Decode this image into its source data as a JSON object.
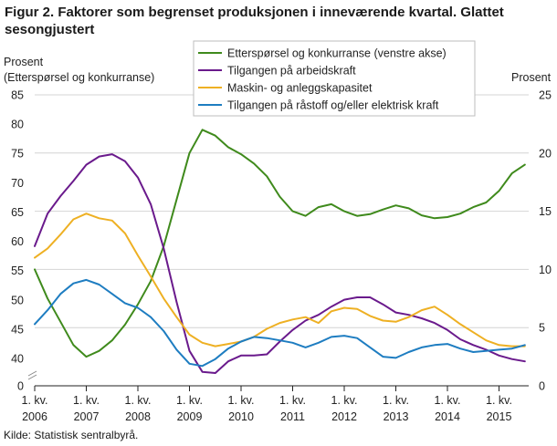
{
  "title": "Figur 2. Faktorer som begrenset produksjonen i inneværende kvartal. Glattet sesongjustert",
  "source": "Kilde: Statistisk sentralbyrå.",
  "chart_data": {
    "type": "line",
    "ylabel_left": [
      "Prosent",
      "(Etterspørsel  og konkurranse)"
    ],
    "ylabel_right": "Prosent",
    "x_ticks": [
      {
        "line1": "1. kv.",
        "line2": "2006"
      },
      {
        "line1": "1. kv.",
        "line2": "2007"
      },
      {
        "line1": "1. kv.",
        "line2": "2008"
      },
      {
        "line1": "1. kv.",
        "line2": "2009"
      },
      {
        "line1": "1. kv.",
        "line2": "2010"
      },
      {
        "line1": "1. kv.",
        "line2": "2011"
      },
      {
        "line1": "1. kv.",
        "line2": "2012"
      },
      {
        "line1": "1. kv.",
        "line2": "2013"
      },
      {
        "line1": "1. kv.",
        "line2": "2014"
      },
      {
        "line1": "1. kv.",
        "line2": "2015"
      }
    ],
    "y_left": {
      "ticks": [
        0,
        40,
        45,
        50,
        55,
        60,
        65,
        70,
        75,
        80,
        85
      ],
      "range": [
        35,
        85
      ],
      "axis_break": true
    },
    "y_right": {
      "ticks": [
        0,
        5,
        10,
        15,
        20,
        25
      ],
      "range": [
        0,
        25
      ]
    },
    "grid": true,
    "legend_placement": "top-center",
    "series": [
      {
        "name": "Etterspørsel og konkurranse (venstre akse)",
        "axis": "left",
        "color": "#3f8a1c",
        "values": [
          55,
          50,
          46,
          42,
          40,
          41,
          42.8,
          45.5,
          49,
          53,
          59,
          67,
          75,
          79,
          78,
          76,
          74.8,
          73.2,
          71,
          67.5,
          65,
          64.2,
          65.7,
          66.2,
          65,
          64.2,
          64.5,
          65.3,
          66,
          65.5,
          64.3,
          63.8,
          64,
          64.6,
          65.7,
          66.5,
          68.5,
          71.5,
          73
        ]
      },
      {
        "name": "Tilgangen på arbeidskraft",
        "axis": "right",
        "color": "#6a1a8c",
        "values": [
          12,
          14.8,
          16.3,
          17.6,
          19,
          19.7,
          19.9,
          19.3,
          17.9,
          15.6,
          11.8,
          7.2,
          3,
          1.2,
          1.1,
          2.1,
          2.6,
          2.6,
          2.7,
          3.8,
          4.8,
          5.6,
          6.1,
          6.8,
          7.4,
          7.6,
          7.6,
          7,
          6.3,
          6.1,
          5.8,
          5.4,
          4.8,
          4,
          3.5,
          3.1,
          2.6,
          2.3,
          2.1
        ]
      },
      {
        "name": "Maskin- og anleggskapasitet",
        "axis": "right",
        "color": "#eeb023",
        "values": [
          11,
          11.8,
          13,
          14.3,
          14.8,
          14.4,
          14.2,
          13.1,
          11.2,
          9.4,
          7.5,
          5.9,
          4.4,
          3.7,
          3.4,
          3.6,
          3.8,
          4.2,
          4.9,
          5.4,
          5.7,
          5.9,
          5.4,
          6.4,
          6.7,
          6.6,
          6,
          5.6,
          5.5,
          5.9,
          6.5,
          6.8,
          6.1,
          5.3,
          4.6,
          3.9,
          3.5,
          3.4,
          3.4
        ]
      },
      {
        "name": "Tilgangen på råstoff og/eller elektrisk kraft",
        "axis": "right",
        "color": "#1e7dc1",
        "values": [
          5.3,
          6.5,
          7.9,
          8.8,
          9.1,
          8.7,
          7.9,
          7.1,
          6.7,
          5.9,
          4.7,
          3.1,
          1.9,
          1.7,
          2.3,
          3.2,
          3.8,
          4.2,
          4.1,
          3.9,
          3.7,
          3.3,
          3.7,
          4.2,
          4.3,
          4.1,
          3.3,
          2.5,
          2.4,
          2.9,
          3.3,
          3.5,
          3.6,
          3.2,
          2.9,
          3,
          3.1,
          3.2,
          3.5
        ]
      }
    ]
  }
}
